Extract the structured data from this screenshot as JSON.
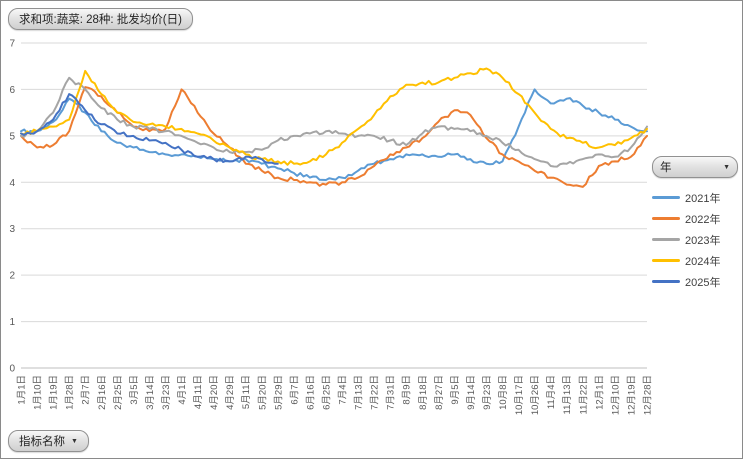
{
  "field_buttons": {
    "value_field": "求和项:蔬菜: 28种: 批发均价(日)",
    "legend_field": "年",
    "axis_field": "指标名称",
    "dropdown_arrow": "▼"
  },
  "colors": {
    "gridline": "#d9d9d9",
    "axis_line": "#bfbfbf",
    "axis_text": "#595959",
    "border": "#8a8a8a"
  },
  "chart_data": {
    "type": "line",
    "title": "求和项:蔬菜: 28种: 批发均价(日)",
    "xlabel": "",
    "ylabel": "",
    "ylim": [
      0,
      7
    ],
    "yticks": [
      0,
      1,
      2,
      3,
      4,
      5,
      6,
      7
    ],
    "grid": true,
    "legend_position": "right",
    "legend_field": "年",
    "categories": [
      "1月1日",
      "1月10日",
      "1月19日",
      "1月28日",
      "2月7日",
      "2月16日",
      "2月25日",
      "3月5日",
      "3月14日",
      "3月23日",
      "4月1日",
      "4月11日",
      "4月20日",
      "4月29日",
      "5月11日",
      "5月20日",
      "5月29日",
      "6月7日",
      "6月16日",
      "6月25日",
      "7月4日",
      "7月13日",
      "7月22日",
      "7月31日",
      "8月9日",
      "8月18日",
      "8月27日",
      "9月5日",
      "9月14日",
      "9月23日",
      "10月8日",
      "10月17日",
      "10月26日",
      "11月4日",
      "11月13日",
      "11月22日",
      "12月1日",
      "12月10日",
      "12月19日",
      "12月28日"
    ],
    "series": [
      {
        "name": "2021年",
        "color": "#5B9BD5",
        "values": [
          5.1,
          5.1,
          5.3,
          5.8,
          5.5,
          5.1,
          4.85,
          4.75,
          4.65,
          4.6,
          4.6,
          4.55,
          4.5,
          4.45,
          4.5,
          4.4,
          4.3,
          4.2,
          4.1,
          4.05,
          4.1,
          4.25,
          4.4,
          4.5,
          4.6,
          4.6,
          4.55,
          4.6,
          4.5,
          4.4,
          4.45,
          5.2,
          6.0,
          5.7,
          5.8,
          5.65,
          5.5,
          5.35,
          5.2,
          5.1
        ]
      },
      {
        "name": "2022年",
        "color": "#ED7D31",
        "values": [
          5.0,
          4.75,
          4.8,
          5.1,
          6.05,
          5.85,
          5.5,
          5.2,
          5.1,
          5.15,
          6.0,
          5.5,
          5.05,
          4.75,
          4.4,
          4.25,
          4.1,
          4.05,
          4.0,
          3.95,
          4.0,
          4.1,
          4.35,
          4.6,
          4.75,
          4.95,
          5.3,
          5.55,
          5.45,
          4.95,
          4.6,
          4.45,
          4.25,
          4.1,
          3.95,
          3.9,
          4.35,
          4.45,
          4.55,
          5.0
        ]
      },
      {
        "name": "2023年",
        "color": "#A5A5A5",
        "values": [
          5.0,
          5.1,
          5.5,
          6.25,
          6.0,
          5.6,
          5.35,
          5.2,
          5.15,
          5.1,
          5.0,
          4.85,
          4.75,
          4.65,
          4.65,
          4.7,
          4.9,
          5.0,
          5.05,
          5.1,
          5.05,
          5.0,
          5.0,
          4.9,
          4.8,
          5.05,
          5.2,
          5.15,
          5.1,
          5.0,
          4.85,
          4.7,
          4.5,
          4.35,
          4.4,
          4.5,
          4.6,
          4.55,
          4.75,
          5.2
        ]
      },
      {
        "name": "2024年",
        "color": "#FFC000",
        "values": [
          5.05,
          5.1,
          5.2,
          5.35,
          6.4,
          5.9,
          5.5,
          5.3,
          5.25,
          5.2,
          5.15,
          5.05,
          4.9,
          4.75,
          4.6,
          4.5,
          4.45,
          4.4,
          4.45,
          4.6,
          4.85,
          5.15,
          5.45,
          5.85,
          6.1,
          6.15,
          6.15,
          6.25,
          6.35,
          6.45,
          6.25,
          5.9,
          5.5,
          5.15,
          4.95,
          4.85,
          4.75,
          4.8,
          4.95,
          5.15
        ]
      },
      {
        "name": "2025年",
        "color": "#4472C4",
        "values": [
          5.05,
          5.1,
          5.35,
          5.9,
          5.55,
          5.25,
          5.05,
          5.0,
          4.9,
          4.85,
          4.7,
          4.55,
          4.5,
          4.45,
          4.55,
          4.5,
          4.4,
          null,
          null,
          null,
          null,
          null,
          null,
          null,
          null,
          null,
          null,
          null,
          null,
          null,
          null,
          null,
          null,
          null,
          null,
          null,
          null,
          null,
          null,
          null
        ]
      }
    ]
  }
}
